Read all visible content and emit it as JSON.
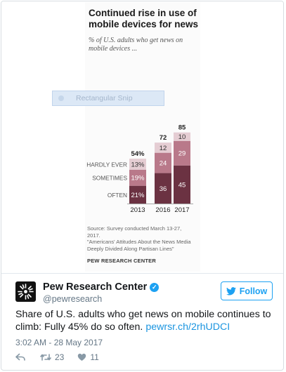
{
  "chart_panel": {
    "title_line1": "Continued rise in use of",
    "title_line2": "mobile devices for news",
    "subtitle_line1": "% of U.S. adults who get news on",
    "subtitle_line2": "mobile devices ...",
    "source_lines": [
      "Source: Survey conducted March 13-27,",
      "2017.",
      "\"Americans' Attitudes About the News Media",
      "Deeply Divided Along Partisan Lines\""
    ],
    "brand": "PEW RESEARCH CENTER"
  },
  "snip_overlay": {
    "label": "Rectangular Snip"
  },
  "chart_data": {
    "type": "bar",
    "stacked": true,
    "categories": [
      "2013",
      "2016",
      "2017"
    ],
    "series": [
      {
        "name": "OFTEN",
        "values": [
          21,
          36,
          45
        ],
        "color": "#6b3242"
      },
      {
        "name": "SOMETIMES",
        "values": [
          19,
          24,
          29
        ],
        "color": "#b9798a"
      },
      {
        "name": "HARDLY EVER",
        "values": [
          13,
          12,
          10
        ],
        "color": "#e5cdd3"
      }
    ],
    "totals": [
      "54%",
      "72",
      "85"
    ],
    "value_labels": [
      [
        "21%",
        "36",
        "45"
      ],
      [
        "19%",
        "24",
        "29"
      ],
      [
        "13%",
        "12",
        "10"
      ]
    ],
    "ylim": [
      0,
      85
    ],
    "legend": "row labels on left"
  },
  "tweet": {
    "name": "Pew Research Center",
    "handle": "@pewresearch",
    "follow_label": "Follow",
    "text": "Share of U.S. adults who get news on mobile continues to climb: Fully 45% do so often.",
    "link": "pewrsr.ch/2rhUDCI",
    "timestamp": "3:02 AM - 28 May 2017",
    "retweets": "23",
    "likes": "11"
  },
  "colors": {
    "accent": "#1da1f2",
    "link": "#1b95e0",
    "muted": "#657786"
  },
  "icons": [
    "verified-badge-icon",
    "twitter-bird-icon",
    "reply-icon",
    "retweet-icon",
    "heart-icon",
    "pew-logo-icon"
  ]
}
